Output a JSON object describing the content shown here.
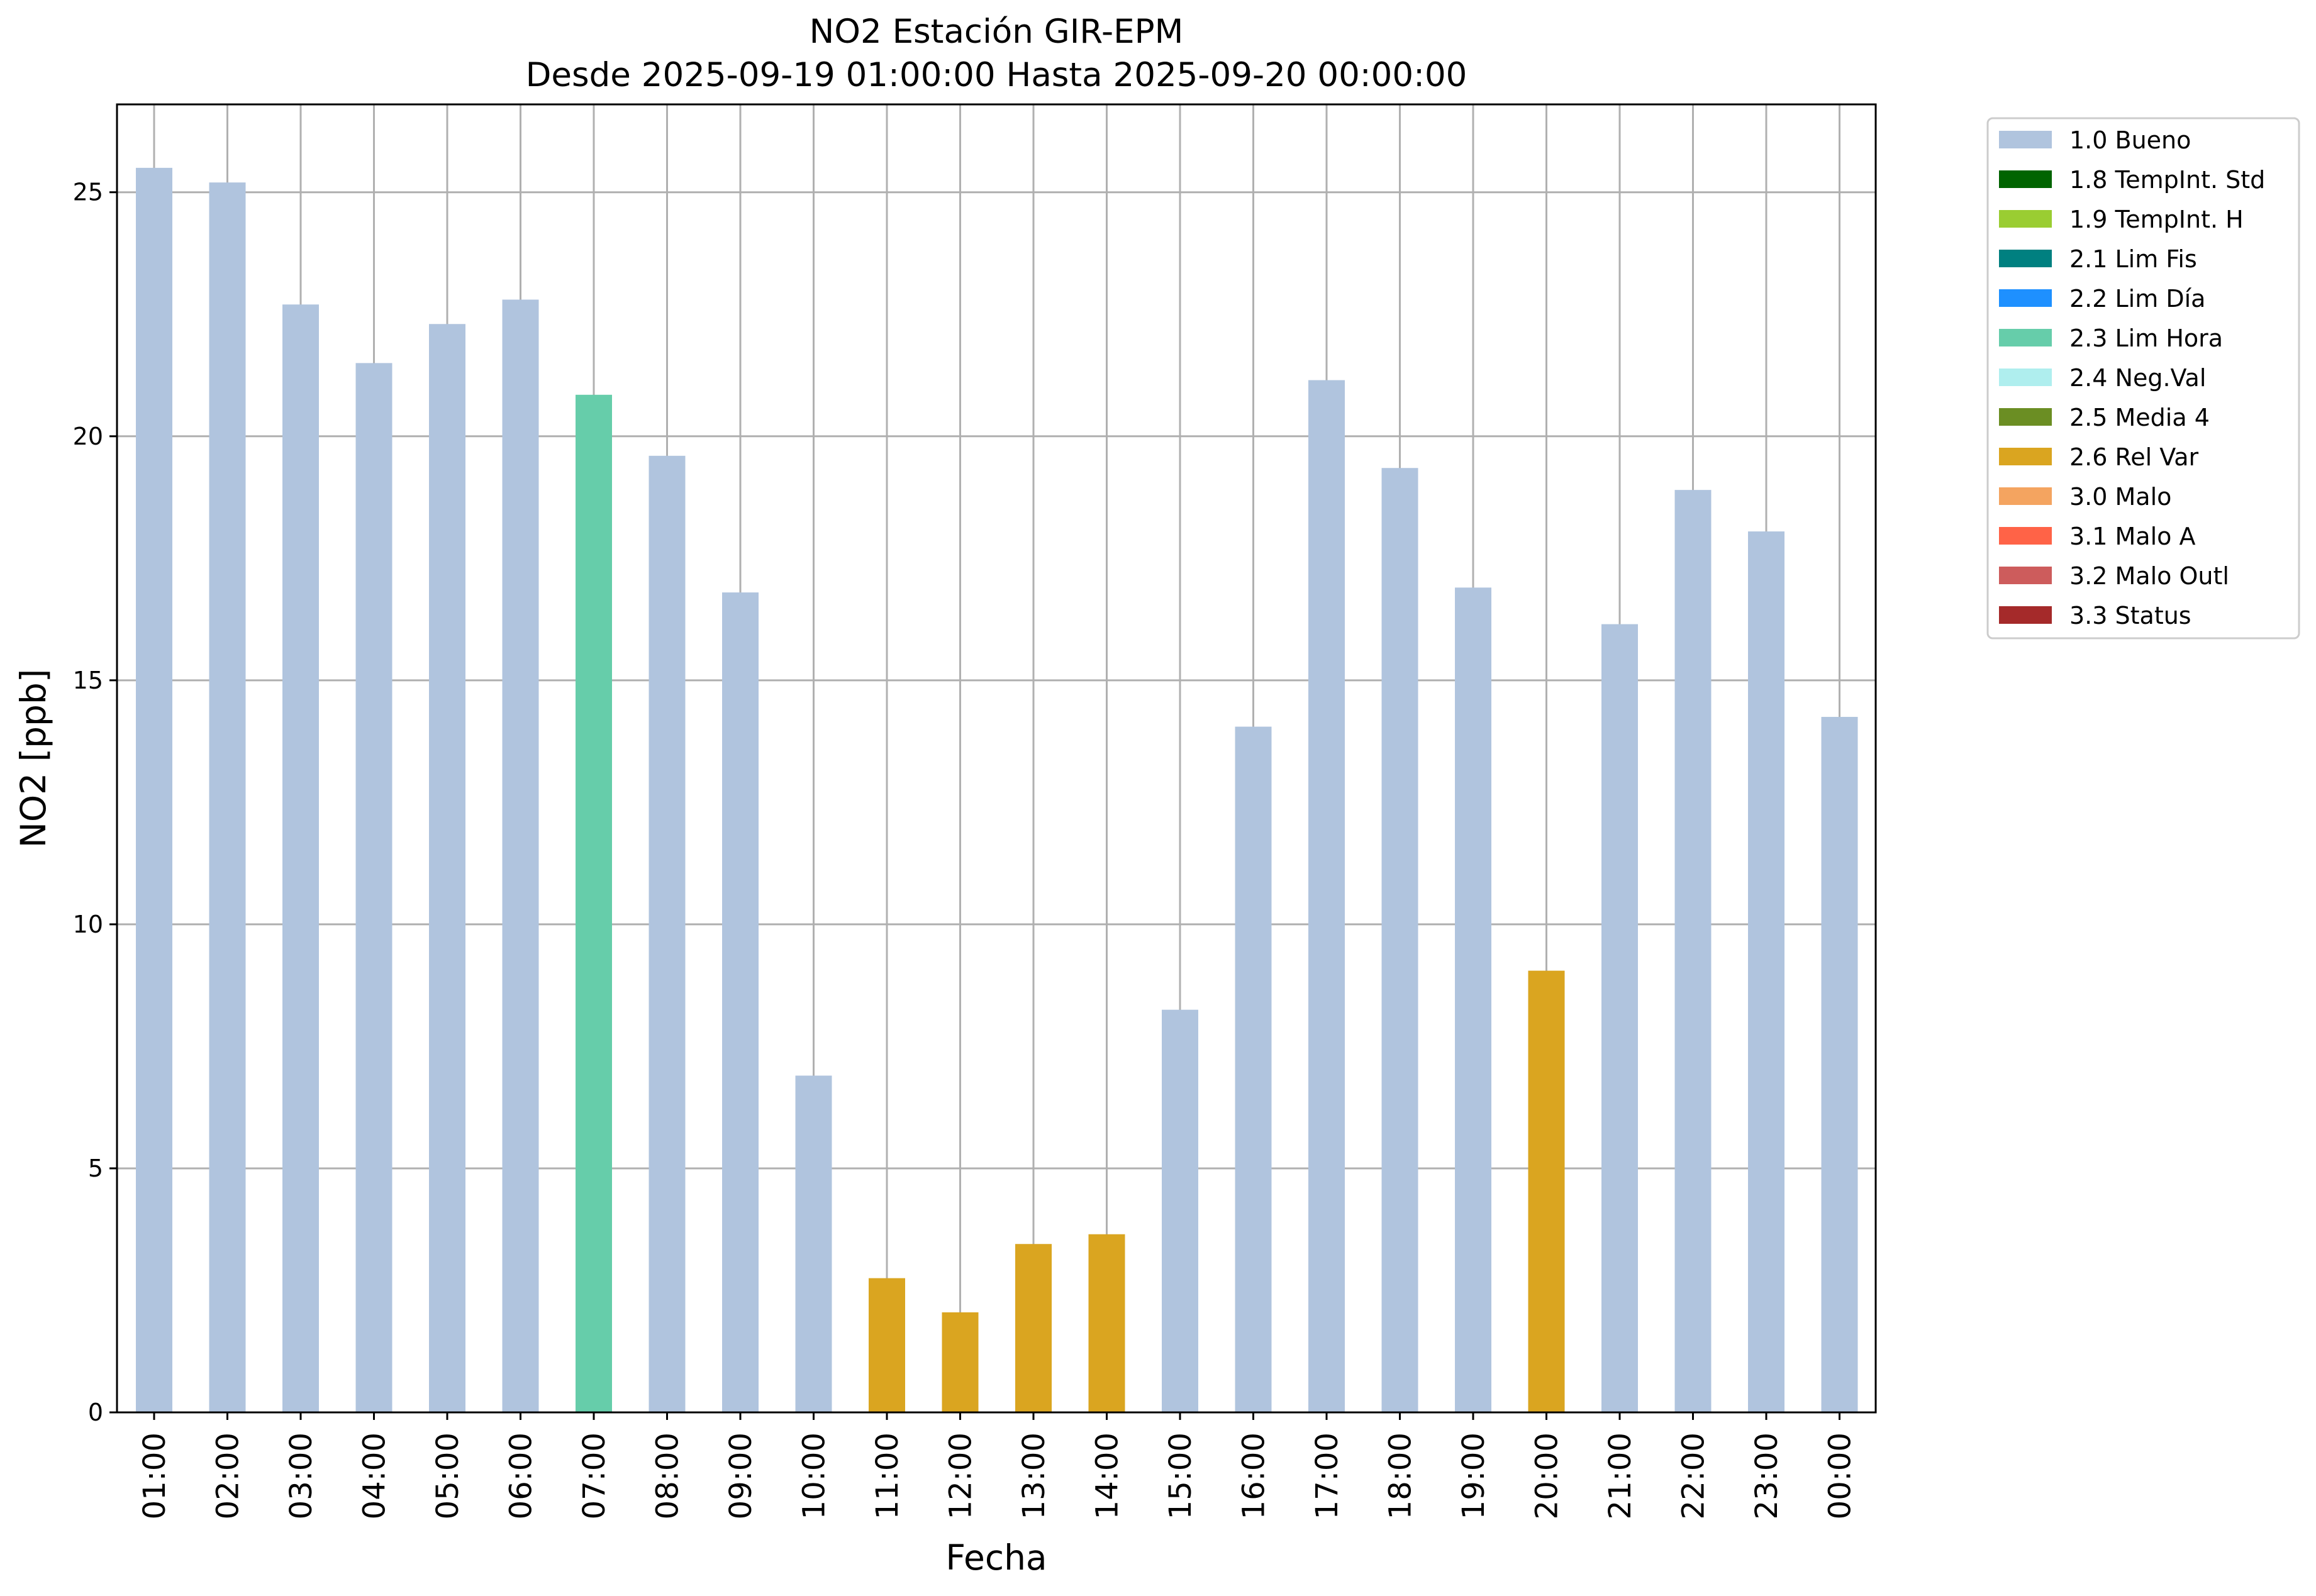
{
  "chart_data": {
    "type": "bar",
    "title": "NO2 Estación GIR-EPM",
    "subtitle": "Desde 2025-09-19 01:00:00 Hasta 2025-09-20 00:00:00",
    "xlabel": "Fecha",
    "ylabel": "NO2 [ppb]",
    "ylim": [
      0,
      26.8
    ],
    "yticks": [
      0,
      5,
      10,
      15,
      20,
      25
    ],
    "grid": true,
    "legend_position": "outside-top-right",
    "categories": [
      "01:00",
      "02:00",
      "03:00",
      "04:00",
      "05:00",
      "06:00",
      "07:00",
      "08:00",
      "09:00",
      "10:00",
      "11:00",
      "12:00",
      "13:00",
      "14:00",
      "15:00",
      "16:00",
      "17:00",
      "18:00",
      "19:00",
      "20:00",
      "21:00",
      "22:00",
      "23:00",
      "00:00"
    ],
    "values": [
      25.5,
      25.2,
      22.7,
      21.5,
      22.3,
      22.8,
      20.85,
      19.6,
      16.8,
      6.9,
      2.75,
      2.05,
      3.45,
      3.65,
      8.25,
      14.05,
      21.15,
      19.35,
      16.9,
      9.05,
      16.15,
      18.9,
      18.05,
      14.25
    ],
    "flags": [
      "1.0 Bueno",
      "1.0 Bueno",
      "1.0 Bueno",
      "1.0 Bueno",
      "1.0 Bueno",
      "1.0 Bueno",
      "2.3 Lim Hora",
      "1.0 Bueno",
      "1.0 Bueno",
      "1.0 Bueno",
      "2.6 Rel Var",
      "2.6 Rel Var",
      "2.6 Rel Var",
      "2.6 Rel Var",
      "1.0 Bueno",
      "1.0 Bueno",
      "1.0 Bueno",
      "1.0 Bueno",
      "1.0 Bueno",
      "2.6 Rel Var",
      "1.0 Bueno",
      "1.0 Bueno",
      "1.0 Bueno",
      "1.0 Bueno"
    ],
    "legend": [
      {
        "label": "1.0 Bueno",
        "color": "#b0c4de"
      },
      {
        "label": "1.8 TempInt. Std",
        "color": "#006400"
      },
      {
        "label": "1.9 TempInt. H",
        "color": "#9acd32"
      },
      {
        "label": "2.1 Lim Fis",
        "color": "#008080"
      },
      {
        "label": "2.2 Lim Día",
        "color": "#1e90ff"
      },
      {
        "label": "2.3 Lim Hora",
        "color": "#66cdaa"
      },
      {
        "label": "2.4 Neg.Val",
        "color": "#afeeee"
      },
      {
        "label": "2.5 Media 4",
        "color": "#6b8e23"
      },
      {
        "label": "2.6 Rel Var",
        "color": "#daa520"
      },
      {
        "label": "3.0 Malo",
        "color": "#f4a460"
      },
      {
        "label": "3.1 Malo A",
        "color": "#ff6347"
      },
      {
        "label": "3.2 Malo Outl",
        "color": "#cd5c5c"
      },
      {
        "label": "3.3 Status",
        "color": "#a52a2a"
      }
    ]
  }
}
